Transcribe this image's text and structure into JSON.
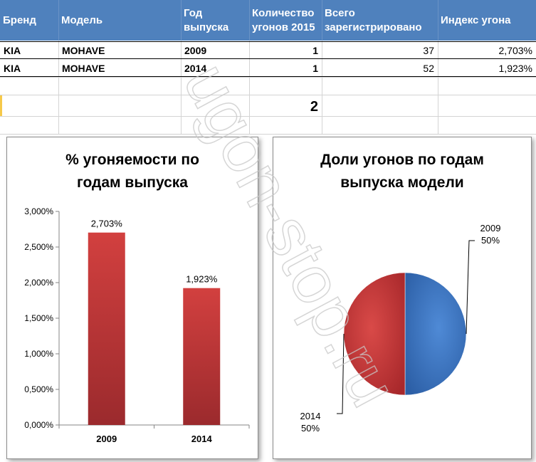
{
  "table": {
    "headers": [
      {
        "line1": "Бренд",
        "line2": ""
      },
      {
        "line1": "Модель",
        "line2": ""
      },
      {
        "line1": "Год",
        "line2": "выпуска"
      },
      {
        "line1": "Количество",
        "line2": "угонов 2015"
      },
      {
        "line1": "Всего",
        "line2": "зарегистрировано"
      },
      {
        "line1": "Индекс угона",
        "line2": ""
      }
    ],
    "rows": [
      {
        "brand": "KIA",
        "model": "MOHAVE",
        "year": "2009",
        "thefts": "1",
        "registered": "37",
        "index": "2,703%"
      },
      {
        "brand": "KIA",
        "model": "MOHAVE",
        "year": "2014",
        "thefts": "1",
        "registered": "52",
        "index": "1,923%"
      }
    ],
    "total_thefts": "2"
  },
  "watermark": "ugon-stop.ru",
  "colors": {
    "header_bg": "#4f81bd",
    "bar_red": "#c0393b",
    "pie_blue": "#3f75c0",
    "pie_red": "#c53a3a",
    "selected_cell": "#f6c94a"
  },
  "chart_data": [
    {
      "type": "bar",
      "title_line1": "% угоняемости по",
      "title_line2": "годам выпуска",
      "categories": [
        "2009",
        "2014"
      ],
      "values": [
        2.703,
        1.923
      ],
      "data_labels": [
        "2,703%",
        "1,923%"
      ],
      "ylim": [
        0,
        3
      ],
      "yticks": [
        0,
        0.5,
        1,
        1.5,
        2,
        2.5,
        3
      ],
      "ytick_labels": [
        "0,000%",
        "0,500%",
        "1,000%",
        "1,500%",
        "2,000%",
        "2,500%",
        "3,000%"
      ],
      "grid": false,
      "legend": "none"
    },
    {
      "type": "pie",
      "title_line1": "Доли угонов по годам",
      "title_line2": "выпуска модели",
      "categories": [
        "2009",
        "2014"
      ],
      "values": [
        50,
        50
      ],
      "data_labels": [
        "50%",
        "50%"
      ],
      "legend": "none"
    }
  ]
}
